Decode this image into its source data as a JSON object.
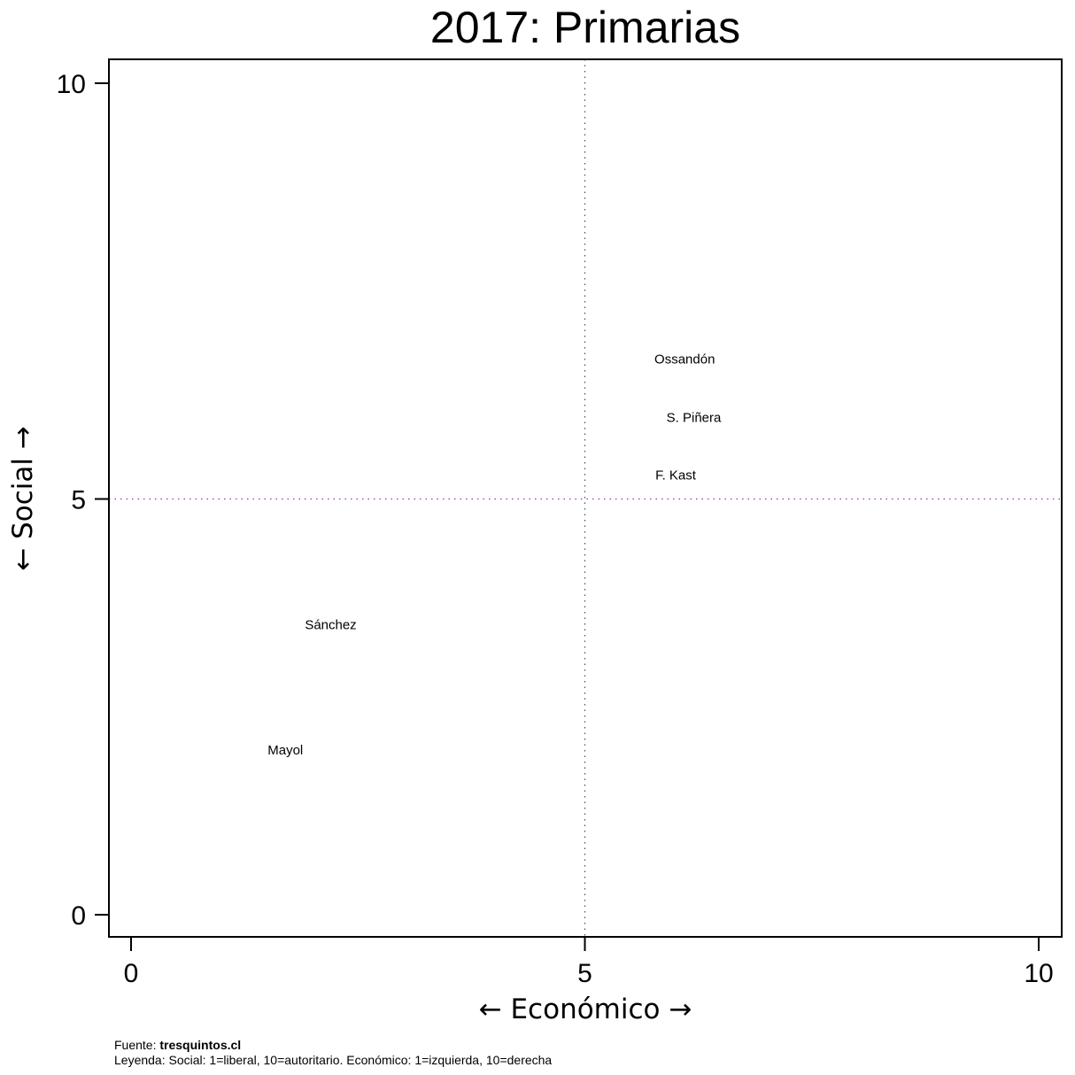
{
  "chart_data": {
    "type": "scatter",
    "title": "2017: Primarias",
    "xlabel": "← Económico →",
    "ylabel": "← Social →",
    "xlim": [
      0,
      10
    ],
    "ylim": [
      0,
      10
    ],
    "xticks": [
      0,
      5,
      10
    ],
    "yticks": [
      0,
      5,
      10
    ],
    "reference_lines": {
      "x": 5,
      "y": 5
    },
    "grid": false,
    "points": [
      {
        "label": "Ossandón",
        "x": 6.1,
        "y": 6.68
      },
      {
        "label": "S. Piñera",
        "x": 6.2,
        "y": 5.98
      },
      {
        "label": "F. Kast",
        "x": 6.0,
        "y": 5.29
      },
      {
        "label": "Sánchez",
        "x": 2.2,
        "y": 3.49
      },
      {
        "label": "Mayol",
        "x": 1.7,
        "y": 1.98
      }
    ],
    "colors": {
      "vertical_reference": "#555555",
      "horizontal_reference": "#9b30b5"
    }
  },
  "footer": {
    "source_prefix": "Fuente: ",
    "source_name": "tresquintos.cl",
    "legend": "Leyenda: Social: 1=liberal, 10=autoritario. Económico: 1=izquierda, 10=derecha"
  }
}
